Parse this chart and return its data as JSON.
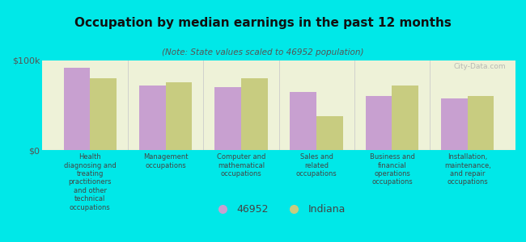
{
  "title": "Occupation by median earnings in the past 12 months",
  "subtitle": "(Note: State values scaled to 46952 population)",
  "background_color": "#00e8e8",
  "plot_bg_color": "#eef2d8",
  "categories": [
    "Health\ndiagnosing and\ntreating\npractitioners\nand other\ntechnical\noccupations",
    "Management\noccupations",
    "Computer and\nmathematical\noccupations",
    "Sales and\nrelated\noccupations",
    "Business and\nfinancial\noperations\noccupations",
    "Installation,\nmaintenance,\nand repair\noccupations"
  ],
  "values_46952": [
    92000,
    72000,
    70000,
    65000,
    60000,
    58000
  ],
  "values_indiana": [
    80000,
    76000,
    80000,
    38000,
    72000,
    60000
  ],
  "color_46952": "#c8a0d0",
  "color_indiana": "#c8cc80",
  "ymax": 100000,
  "yticks": [
    0,
    100000
  ],
  "ytick_labels": [
    "$0",
    "$100k"
  ],
  "legend_label_1": "46952",
  "legend_label_2": "Indiana",
  "watermark": "City-Data.com"
}
